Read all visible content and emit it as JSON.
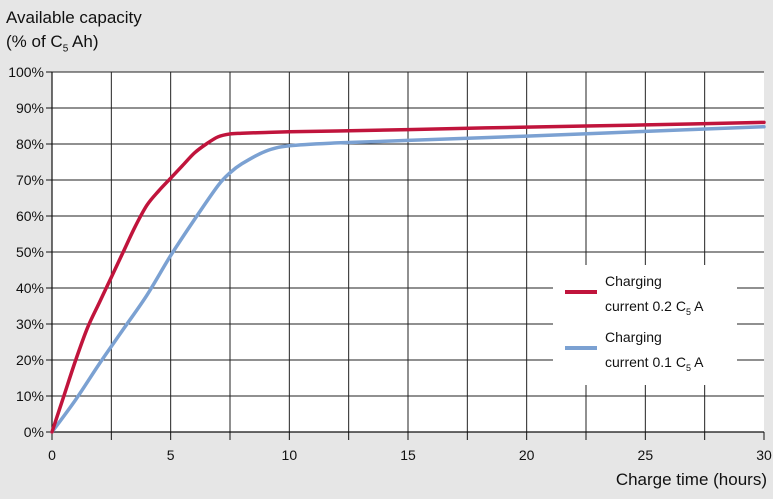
{
  "chart_data": {
    "type": "line",
    "ylabel_line1": "Available capacity",
    "ylabel_line2_pre": "(% of C",
    "ylabel_line2_sub": "5",
    "ylabel_line2_post": " Ah)",
    "xlabel": "Charge time (hours)",
    "xlim": [
      0,
      30
    ],
    "ylim": [
      0,
      100
    ],
    "xticks": [
      0,
      5,
      10,
      15,
      20,
      25,
      30
    ],
    "xtick_labels": [
      "0",
      "5",
      "10",
      "15",
      "20",
      "25",
      "30"
    ],
    "yticks": [
      0,
      10,
      20,
      30,
      40,
      50,
      60,
      70,
      80,
      90,
      100
    ],
    "ytick_labels": [
      "0%",
      "10%",
      "20%",
      "30%",
      "40%",
      "50%",
      "60%",
      "70%",
      "80%",
      "90%",
      "100%"
    ],
    "grid": true,
    "legend_position": "right",
    "series": [
      {
        "legend_line1": "Charging",
        "legend_line2_pre": "current 0.2 C",
        "legend_line2_sub": "5",
        "legend_line2_post": " A",
        "color": "#c0143c",
        "x": [
          0,
          0.5,
          1,
          1.5,
          2,
          2.5,
          3,
          3.5,
          4,
          4.5,
          5,
          5.5,
          6,
          6.5,
          7,
          7.5,
          8,
          9,
          10,
          12,
          15,
          20,
          25,
          30
        ],
        "y": [
          0,
          10,
          20,
          29,
          36,
          43,
          50,
          57,
          63,
          67,
          70.5,
          74,
          77.5,
          80,
          82,
          82.8,
          83,
          83.2,
          83.4,
          83.6,
          84,
          84.7,
          85.3,
          86
        ]
      },
      {
        "legend_line1": "Charging",
        "legend_line2_pre": "current 0.1 C",
        "legend_line2_sub": "5",
        "legend_line2_post": " A",
        "color": "#7ba1d2",
        "x": [
          0,
          1,
          2,
          3,
          4,
          5,
          6,
          7,
          7.5,
          8,
          9,
          10,
          12,
          15,
          20,
          25,
          30
        ],
        "y": [
          0,
          9,
          19,
          28.5,
          38,
          49,
          59,
          68.5,
          72,
          74.5,
          78,
          79.5,
          80.3,
          81,
          82.2,
          83.5,
          84.8
        ]
      }
    ]
  }
}
